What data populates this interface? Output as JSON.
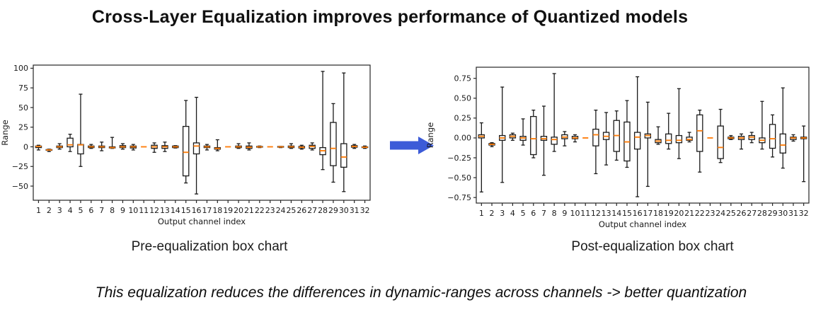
{
  "title": "Cross-Layer Equalization improves performance of Quantized models",
  "captions": {
    "left": "Pre-equalization box chart",
    "right": "Post-equalization box chart"
  },
  "footnote": "This equalization reduces the differences in dynamic-ranges across channels -> better quantization",
  "arrow": {
    "color": "#3c5bd8",
    "direction": "right"
  },
  "colors": {
    "box_edge": "#1a1a1a",
    "median": "#ff7f0e",
    "axis": "#262626"
  },
  "chart_data": [
    {
      "type": "boxplot",
      "caption": "Pre-equalization box chart",
      "xlabel": "Output channel index",
      "ylabel": "Range",
      "categories": [
        "1",
        "2",
        "3",
        "4",
        "5",
        "6",
        "7",
        "8",
        "9",
        "10",
        "11",
        "12",
        "13",
        "14",
        "15",
        "16",
        "17",
        "18",
        "19",
        "20",
        "21",
        "22",
        "23",
        "24",
        "25",
        "26",
        "27",
        "28",
        "29",
        "30",
        "31",
        "32"
      ],
      "yticks": [
        -50,
        -25,
        0,
        25,
        50,
        75,
        100
      ],
      "ylim": [
        -68,
        104
      ],
      "tick_decimals": 0,
      "grid": false,
      "legend": null,
      "boxes": [
        [
          -4,
          -1,
          0.5,
          1,
          2
        ],
        [
          -6,
          -4.5,
          -4,
          -3.5,
          -3
        ],
        [
          -3,
          -1,
          0,
          1,
          4
        ],
        [
          -6,
          0,
          2.5,
          11,
          16
        ],
        [
          -25,
          -9,
          2.5,
          3,
          67
        ],
        [
          -2,
          -1,
          0,
          1,
          3
        ],
        [
          -5,
          -1,
          0,
          1,
          6
        ],
        [
          -2,
          -1.5,
          -1,
          0,
          12
        ],
        [
          -3,
          -1,
          0,
          1.5,
          4
        ],
        [
          -4,
          -1.5,
          0,
          1,
          3
        ],
        [
          0,
          0,
          0,
          0,
          0
        ],
        [
          -7,
          -2,
          0,
          2,
          5
        ],
        [
          -6,
          -2,
          0,
          1.5,
          6
        ],
        [
          -1.5,
          -1,
          0,
          1,
          1.5
        ],
        [
          -46,
          -37,
          -7,
          26,
          59
        ],
        [
          -60,
          -9,
          1,
          5,
          63
        ],
        [
          -4,
          -1,
          0,
          1,
          3
        ],
        [
          -5,
          -3,
          -2,
          -1,
          9
        ],
        [
          0,
          0,
          0,
          0,
          0
        ],
        [
          -2,
          -1,
          0,
          1,
          4
        ],
        [
          -4,
          -2,
          -0.5,
          1,
          5
        ],
        [
          -1,
          -0.5,
          0,
          0.5,
          1
        ],
        [
          0,
          0,
          0,
          0,
          0
        ],
        [
          -1,
          -0.5,
          0,
          0.5,
          0.5
        ],
        [
          -2,
          -1,
          0,
          1,
          4
        ],
        [
          -3,
          -1.5,
          -0.5,
          0.5,
          2
        ],
        [
          -4,
          -2,
          0.5,
          2,
          5
        ],
        [
          -29,
          -10,
          -5,
          -1,
          96
        ],
        [
          -45,
          -24,
          -2,
          31,
          55
        ],
        [
          -57,
          -26,
          -13,
          4,
          94
        ],
        [
          -2,
          -0.5,
          0.5,
          1.5,
          3
        ],
        [
          -2,
          -1,
          -0.5,
          0,
          1
        ]
      ]
    },
    {
      "type": "boxplot",
      "caption": "Post-equalization box chart",
      "xlabel": "Output channel index",
      "ylabel": "Range",
      "categories": [
        "1",
        "2",
        "3",
        "4",
        "5",
        "6",
        "7",
        "8",
        "9",
        "10",
        "11",
        "12",
        "13",
        "14",
        "15",
        "16",
        "17",
        "18",
        "19",
        "20",
        "21",
        "22",
        "23",
        "24",
        "25",
        "26",
        "27",
        "28",
        "29",
        "30",
        "31",
        "32"
      ],
      "yticks": [
        -0.75,
        -0.5,
        -0.25,
        0,
        0.25,
        0.5,
        0.75
      ],
      "ylim": [
        -0.82,
        0.89
      ],
      "tick_decimals": 2,
      "grid": false,
      "legend": null,
      "boxes": [
        [
          -0.68,
          0,
          0.02,
          0.04,
          0.19
        ],
        [
          -0.11,
          -0.09,
          -0.08,
          -0.07,
          -0.06
        ],
        [
          -0.56,
          -0.03,
          0,
          0.03,
          0.64
        ],
        [
          -0.03,
          0,
          0.02,
          0.04,
          0.06
        ],
        [
          -0.09,
          -0.03,
          0,
          0.02,
          0.24
        ],
        [
          -0.25,
          -0.21,
          -0.01,
          0.27,
          0.35
        ],
        [
          -0.47,
          -0.03,
          -0.01,
          0.02,
          0.4
        ],
        [
          -0.17,
          -0.08,
          -0.02,
          0.01,
          0.81
        ],
        [
          -0.1,
          -0.01,
          0.01,
          0.04,
          0.08
        ],
        [
          -0.05,
          -0.01,
          0,
          0.02,
          0.04
        ],
        [
          0,
          0,
          0,
          0,
          0
        ],
        [
          -0.45,
          -0.1,
          0.04,
          0.11,
          0.35
        ],
        [
          -0.34,
          -0.02,
          0.02,
          0.07,
          0.32
        ],
        [
          -0.28,
          -0.17,
          0.03,
          0.22,
          0.34
        ],
        [
          -0.37,
          -0.29,
          -0.05,
          0.2,
          0.47
        ],
        [
          -0.74,
          -0.14,
          0.01,
          0.07,
          0.77
        ],
        [
          -0.61,
          0,
          0.03,
          0.05,
          0.45
        ],
        [
          -0.08,
          -0.06,
          -0.04,
          -0.02,
          0.14
        ],
        [
          -0.14,
          -0.07,
          -0.03,
          0.05,
          0.31
        ],
        [
          -0.26,
          -0.06,
          -0.03,
          0.03,
          0.62
        ],
        [
          -0.05,
          -0.03,
          -0.02,
          0.01,
          0.07
        ],
        [
          -0.43,
          -0.17,
          0.09,
          0.29,
          0.35
        ],
        [
          0,
          0,
          0,
          0,
          0
        ],
        [
          -0.31,
          -0.26,
          -0.12,
          0.15,
          0.36
        ],
        [
          -0.02,
          -0.01,
          0,
          0.01,
          0.03
        ],
        [
          -0.14,
          -0.02,
          0,
          0.02,
          0.05
        ],
        [
          -0.06,
          -0.02,
          0.01,
          0.03,
          0.07
        ],
        [
          -0.14,
          -0.06,
          -0.03,
          0,
          0.46
        ],
        [
          -0.24,
          -0.13,
          -0.01,
          0.17,
          0.29
        ],
        [
          -0.38,
          -0.19,
          -0.09,
          0.05,
          0.63
        ],
        [
          -0.04,
          -0.02,
          0,
          0.01,
          0.04
        ],
        [
          -0.55,
          -0.01,
          0,
          0.01,
          0.15
        ]
      ]
    }
  ]
}
